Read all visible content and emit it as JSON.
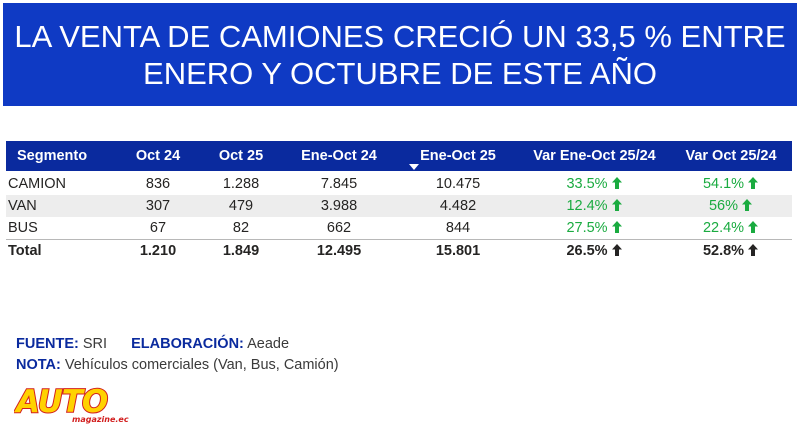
{
  "title": "LA VENTA DE CAMIONES CRECIÓ UN 33,5 % ENTRE ENERO Y OCTUBRE DE ESTE AÑO",
  "colors": {
    "banner": "#0f3ac4",
    "header": "#0a2a9e",
    "positive": "#1aab40",
    "logo_yellow": "#ffd200",
    "logo_red": "#d21f1f"
  },
  "table": {
    "columns": [
      "Segmento",
      "Oct 24",
      "Oct 25",
      "Ene-Oct 24",
      "Ene-Oct 25",
      "Var Ene-Oct 25/24",
      "Var Oct 25/24"
    ],
    "sorted_column": "Ene-Oct 25",
    "rows": [
      {
        "segment": "CAMION",
        "oct24": "836",
        "oct25": "1.288",
        "eneoct24": "7.845",
        "eneoct25": "10.475",
        "var_eneoct": "33.5%",
        "var_oct": "54.1%"
      },
      {
        "segment": "VAN",
        "oct24": "307",
        "oct25": "479",
        "eneoct24": "3.988",
        "eneoct25": "4.482",
        "var_eneoct": "12.4%",
        "var_oct": "56%"
      },
      {
        "segment": "BUS",
        "oct24": "67",
        "oct25": "82",
        "eneoct24": "662",
        "eneoct25": "844",
        "var_eneoct": "27.5%",
        "var_oct": "22.4%"
      }
    ],
    "total": {
      "segment": "Total",
      "oct24": "1.210",
      "oct25": "1.849",
      "eneoct24": "12.495",
      "eneoct25": "15.801",
      "var_eneoct": "26.5%",
      "var_oct": "52.8%"
    },
    "arrow_icon": "arrow-up-icon"
  },
  "notes": {
    "source_label": "FUENTE:",
    "source_value": "SRI",
    "made_label": "ELABORACIÓN:",
    "made_value": "Aeade",
    "note_label": "NOTA:",
    "note_value": "Vehículos comerciales (Van, Bus, Camión)"
  },
  "logo": {
    "main": "AUTO",
    "sub": "magazine.ec"
  }
}
